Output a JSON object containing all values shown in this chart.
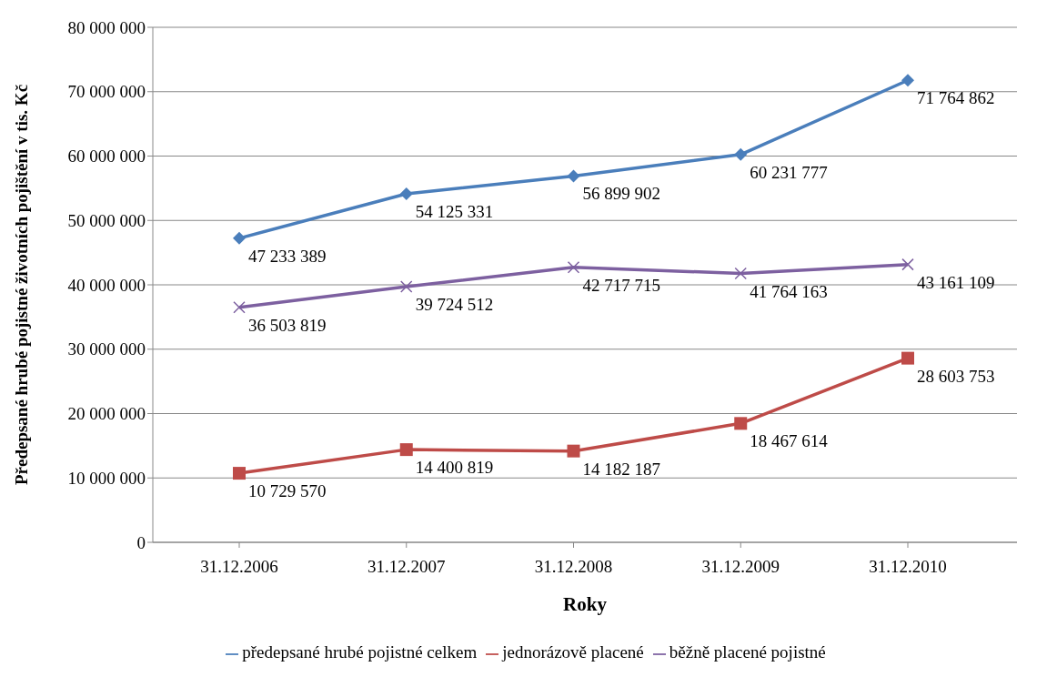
{
  "chart_data": {
    "type": "line",
    "xlabel": "Roky",
    "ylabel": "Předepsané hrubé pojistné životních pojištění v tis. Kč",
    "categories": [
      "31.12.2006",
      "31.12.2007",
      "31.12.2008",
      "31.12.2009",
      "31.12.2010"
    ],
    "series": [
      {
        "name": "předepsané hrubé pojistné celkem",
        "color": "#4a7ebb",
        "marker": "diamond",
        "values": [
          47233389,
          54125331,
          56899902,
          60231777,
          71764862
        ],
        "value_labels": [
          "47 233 389",
          "54 125 331",
          "56 899 902",
          "60 231 777",
          "71 764 862"
        ]
      },
      {
        "name": "jednorázově placené",
        "color": "#be4b48",
        "marker": "square",
        "values": [
          10729570,
          14400819,
          14182187,
          18467614,
          28603753
        ],
        "value_labels": [
          "10 729 570",
          "14 400 819",
          "14 182 187",
          "18 467 614",
          "28 603 753"
        ]
      },
      {
        "name": "běžně placené pojistné",
        "color": "#7d60a0",
        "marker": "cross",
        "values": [
          36503819,
          39724512,
          42717715,
          41764163,
          43161109
        ],
        "value_labels": [
          "36 503 819",
          "39 724 512",
          "42 717 715",
          "41 764 163",
          "43 161 109"
        ]
      }
    ],
    "ylim": [
      0,
      80000000
    ],
    "yticks": [
      {
        "value": 0,
        "label": "0"
      },
      {
        "value": 10000000,
        "label": "10 000 000"
      },
      {
        "value": 20000000,
        "label": "20 000 000"
      },
      {
        "value": 30000000,
        "label": "30 000 000"
      },
      {
        "value": 40000000,
        "label": "40 000 000"
      },
      {
        "value": 50000000,
        "label": "50 000 000"
      },
      {
        "value": 60000000,
        "label": "60 000 000"
      },
      {
        "value": 70000000,
        "label": "70 000 000"
      },
      {
        "value": 80000000,
        "label": "80 000 000"
      }
    ],
    "grid": "y",
    "legend": "bottom",
    "line_style": "solid"
  }
}
